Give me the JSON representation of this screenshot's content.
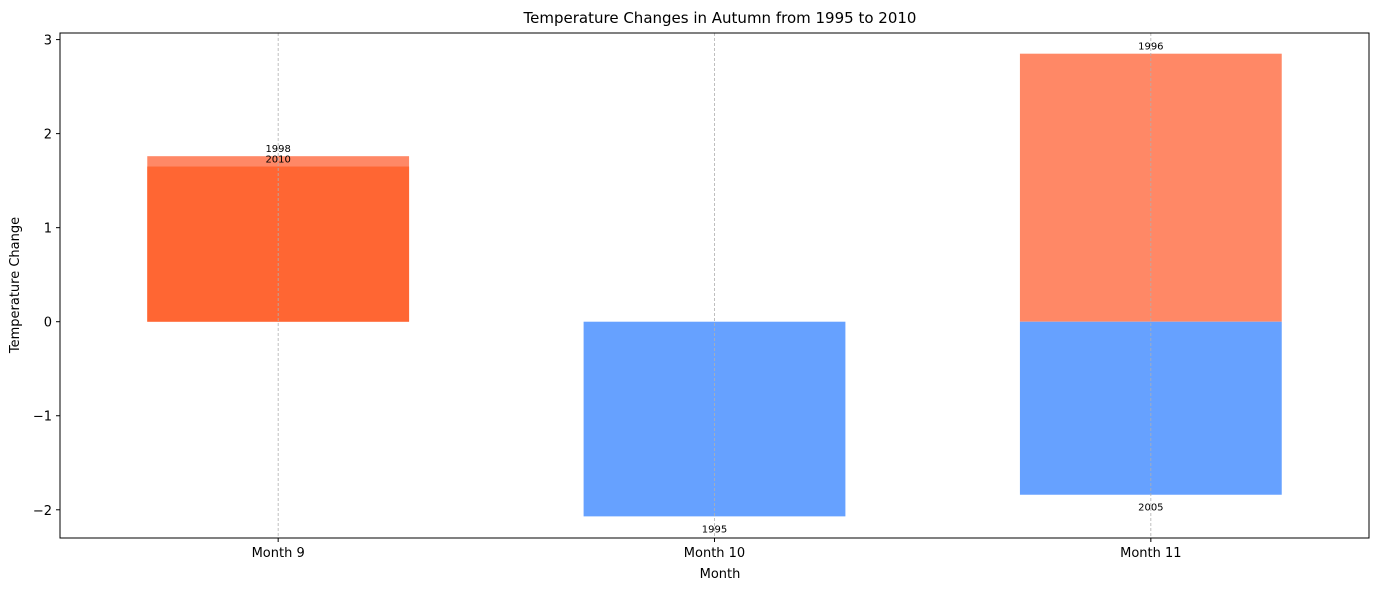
{
  "chart_data": {
    "type": "bar",
    "title": "Temperature Changes in Autumn from 1995 to 2010",
    "xlabel": "Month",
    "ylabel": "Temperature Change",
    "categories": [
      "Month 9",
      "Month 10",
      "Month 11"
    ],
    "ylim": [
      -2.3,
      3.07
    ],
    "yticks": [
      -2,
      -1,
      0,
      1,
      2,
      3
    ],
    "ytick_labels": [
      "−2",
      "−1",
      "0",
      "1",
      "2",
      "3"
    ],
    "grid": "vertical dashed",
    "colors": {
      "warm_dark": "#ff6633",
      "warm_light": "#ff8866",
      "cold": "#66a1ff",
      "grid": "#b0b0b0"
    },
    "bars": [
      {
        "category": "Month 9",
        "year": "1998",
        "value": 1.76,
        "color": "#ff8866",
        "label_pos": "above"
      },
      {
        "category": "Month 9",
        "year": "2010",
        "value": 1.65,
        "color": "#ff6633",
        "label_pos": "above"
      },
      {
        "category": "Month 10",
        "year": "1995",
        "value": -2.07,
        "color": "#66a1ff",
        "label_pos": "below"
      },
      {
        "category": "Month 11",
        "year": "1996",
        "value": 2.85,
        "color": "#ff8866",
        "label_pos": "above"
      },
      {
        "category": "Month 11",
        "year": "2005",
        "value": -1.84,
        "color": "#66a1ff",
        "label_pos": "below"
      }
    ]
  }
}
